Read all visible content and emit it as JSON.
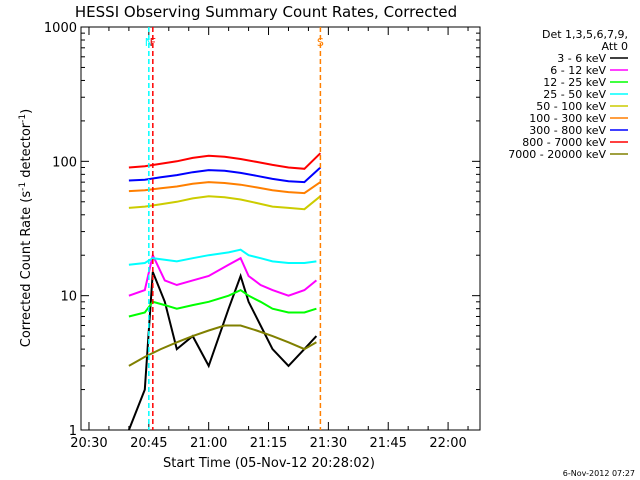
{
  "chart_data": {
    "type": "line",
    "title": "HESSI Observing Summary Count Rates, Corrected",
    "xlabel": "Start Time (05-Nov-12 20:28:02)",
    "ylabel": "Corrected Count Rate (s⁻¹ detector⁻¹)",
    "ylabel_parts": {
      "base": "Corrected Count Rate (s",
      "sup1": "-1",
      "mid": " detector",
      "sup2": "-1",
      "end": ")"
    },
    "xlim": [
      "20:28",
      "22:08"
    ],
    "ylim": [
      1,
      1000
    ],
    "yscale": "log",
    "x_ticks": [
      "20:30",
      "20:45",
      "21:00",
      "21:15",
      "21:30",
      "21:45",
      "22:00"
    ],
    "y_ticks": [
      "1",
      "10",
      "100",
      "1000"
    ],
    "legend_header": [
      "Det 1,3,5,6,7,9,",
      "Att 0"
    ],
    "legend_position": "right",
    "footer_date": "6-Nov-2012 07:27",
    "series": [
      {
        "name": "3 - 6 keV",
        "color": "#000000",
        "x": [
          "20:40",
          "20:44",
          "20:46",
          "20:49",
          "20:52",
          "20:56",
          "21:00",
          "21:05",
          "21:08",
          "21:10",
          "21:13",
          "21:16",
          "21:20",
          "21:24",
          "21:27"
        ],
        "values": [
          1,
          2,
          15,
          9,
          4,
          5,
          3,
          8,
          14,
          9,
          6,
          4,
          3,
          4,
          5
        ]
      },
      {
        "name": "6 - 12 keV",
        "color": "#ff00ff",
        "x": [
          "20:40",
          "20:44",
          "20:46",
          "20:49",
          "20:52",
          "20:56",
          "21:00",
          "21:05",
          "21:08",
          "21:10",
          "21:13",
          "21:16",
          "21:20",
          "21:24",
          "21:27"
        ],
        "values": [
          10,
          11,
          20,
          13,
          12,
          13,
          14,
          17,
          19,
          14,
          12,
          11,
          10,
          11,
          13
        ]
      },
      {
        "name": "12 - 25 keV",
        "color": "#00ff00",
        "x": [
          "20:40",
          "20:44",
          "20:46",
          "20:49",
          "20:52",
          "20:56",
          "21:00",
          "21:05",
          "21:08",
          "21:10",
          "21:13",
          "21:16",
          "21:20",
          "21:24",
          "21:27"
        ],
        "values": [
          7,
          7.5,
          9,
          8.5,
          8,
          8.5,
          9,
          10,
          11,
          10,
          9,
          8,
          7.5,
          7.5,
          8
        ]
      },
      {
        "name": "25 - 50 keV",
        "color": "#00ffff",
        "x": [
          "20:40",
          "20:44",
          "20:46",
          "20:49",
          "20:52",
          "20:56",
          "21:00",
          "21:05",
          "21:08",
          "21:10",
          "21:13",
          "21:16",
          "21:20",
          "21:24",
          "21:27"
        ],
        "values": [
          17,
          17.5,
          19,
          18.5,
          18,
          19,
          20,
          21,
          22,
          20,
          19,
          18,
          17.5,
          17.5,
          18
        ]
      },
      {
        "name": "50 - 100 keV",
        "color": "#cccc00",
        "x": [
          "20:40",
          "20:44",
          "20:48",
          "20:52",
          "20:56",
          "21:00",
          "21:04",
          "21:08",
          "21:12",
          "21:16",
          "21:20",
          "21:24",
          "21:28"
        ],
        "values": [
          45,
          46,
          48,
          50,
          53,
          55,
          54,
          52,
          49,
          46,
          45,
          44,
          55
        ]
      },
      {
        "name": "100 - 300 keV",
        "color": "#ff7f00",
        "x": [
          "20:40",
          "20:44",
          "20:48",
          "20:52",
          "20:56",
          "21:00",
          "21:04",
          "21:08",
          "21:12",
          "21:16",
          "21:20",
          "21:24",
          "21:28"
        ],
        "values": [
          60,
          61,
          63,
          65,
          68,
          70,
          69,
          67,
          64,
          61,
          59,
          58,
          70
        ]
      },
      {
        "name": "300 - 800 keV",
        "color": "#0000ff",
        "x": [
          "20:40",
          "20:44",
          "20:48",
          "20:52",
          "20:56",
          "21:00",
          "21:04",
          "21:08",
          "21:12",
          "21:16",
          "21:20",
          "21:24",
          "21:28"
        ],
        "values": [
          72,
          73,
          76,
          79,
          83,
          86,
          85,
          82,
          78,
          74,
          71,
          70,
          90
        ]
      },
      {
        "name": "800 - 7000 keV",
        "color": "#ff0000",
        "x": [
          "20:40",
          "20:44",
          "20:48",
          "20:52",
          "20:56",
          "21:00",
          "21:04",
          "21:08",
          "21:12",
          "21:16",
          "21:20",
          "21:24",
          "21:28"
        ],
        "values": [
          90,
          92,
          96,
          100,
          106,
          110,
          108,
          104,
          99,
          94,
          90,
          88,
          115
        ]
      },
      {
        "name": "7000 - 20000 keV",
        "color": "#808000",
        "x": [
          "20:40",
          "20:44",
          "20:48",
          "20:52",
          "20:56",
          "21:00",
          "21:04",
          "21:08",
          "21:12",
          "21:16",
          "21:20",
          "21:24",
          "21:27"
        ],
        "values": [
          3,
          3.5,
          4,
          4.5,
          5,
          5.5,
          6,
          6,
          5.5,
          5,
          4.5,
          4,
          4.5
        ]
      }
    ],
    "annotations": [
      {
        "label": "N",
        "x": "20:45",
        "color": "#00ffff"
      },
      {
        "label": "F",
        "x": "20:46",
        "color": "#ff0000"
      },
      {
        "label": "S",
        "x": "21:28",
        "color": "#ff7f00"
      }
    ]
  }
}
